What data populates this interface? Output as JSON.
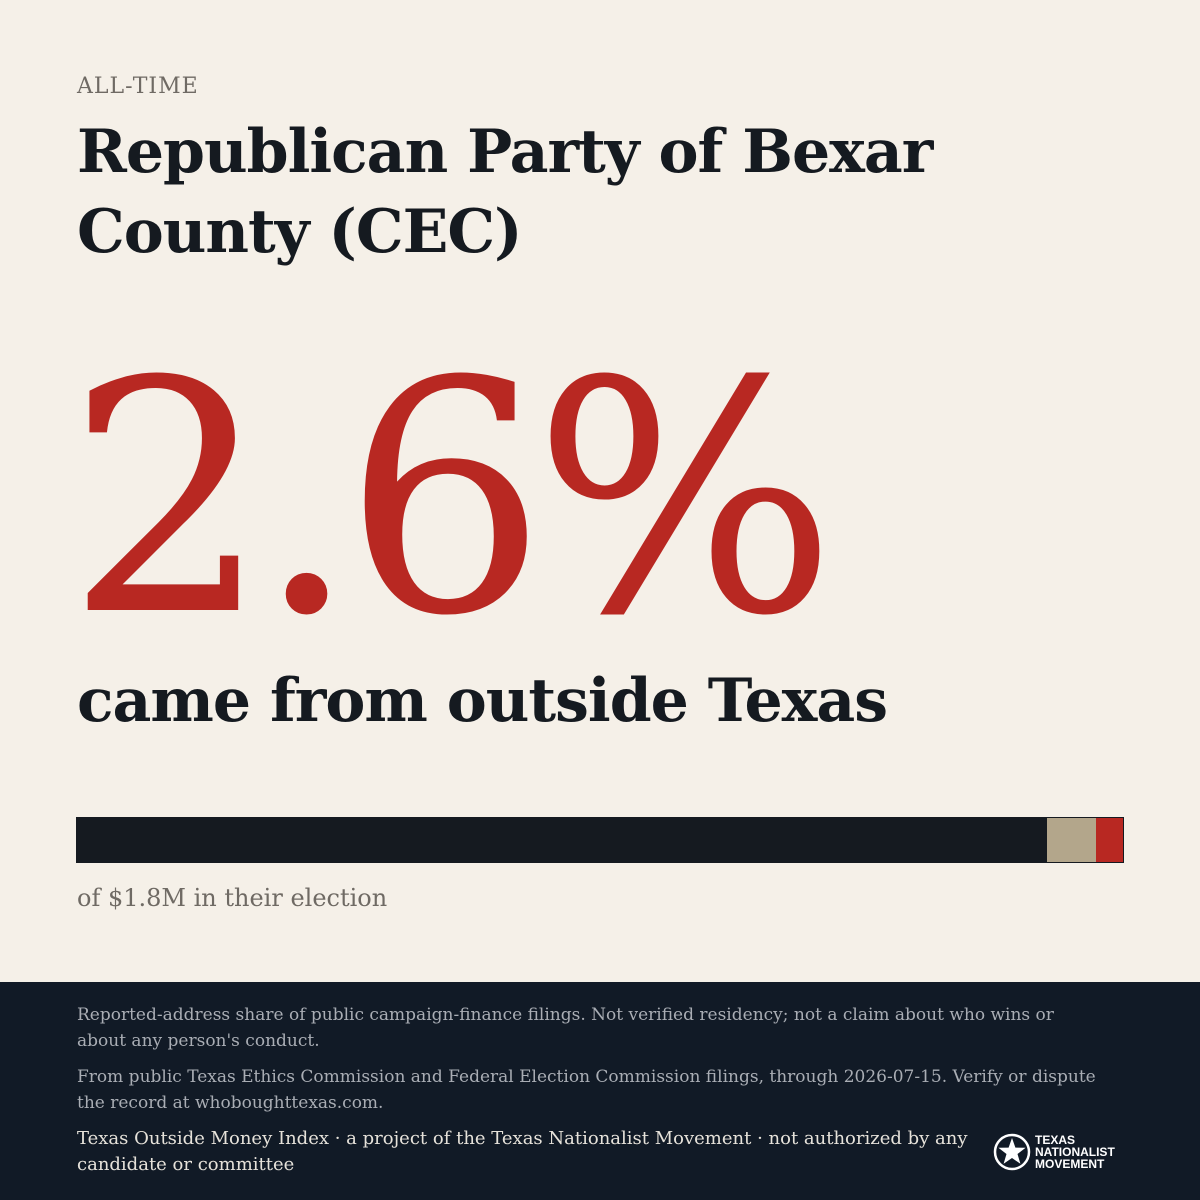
{
  "header": {
    "eyebrow": "ALL-TIME",
    "title": "Republican Party of Bexar County (CEC)"
  },
  "headline": {
    "percent": "2.6%",
    "subline": "came from outside Texas"
  },
  "bar": {
    "outside_texas_share": 0.026,
    "unknown_share": 0.047,
    "colors": {
      "texas": "#151a20",
      "unknown": "#b3a68b",
      "outside": "#b82822"
    }
  },
  "caption": "of $1.8M in their election",
  "footer": {
    "note1": "Reported-address share of public campaign-finance filings. Not verified residency; not a claim about who wins or about any person's conduct.",
    "note2": "From public Texas Ethics Commission and Federal Election Commission filings, through 2026-07-15. Verify or dispute the record at whoboughttexas.com.",
    "credit": "Texas Outside Money Index · a project of the Texas Nationalist Movement · not authorized by any candidate or committee",
    "logo": {
      "line1": "TEXAS",
      "line2": "NATIONALIST",
      "line3": "MOVEMENT",
      "icon": "star-seal-icon"
    }
  },
  "colors": {
    "background": "#f5f0e8",
    "accent": "#b82822",
    "ink": "#151a20",
    "footer": "#111a26"
  }
}
